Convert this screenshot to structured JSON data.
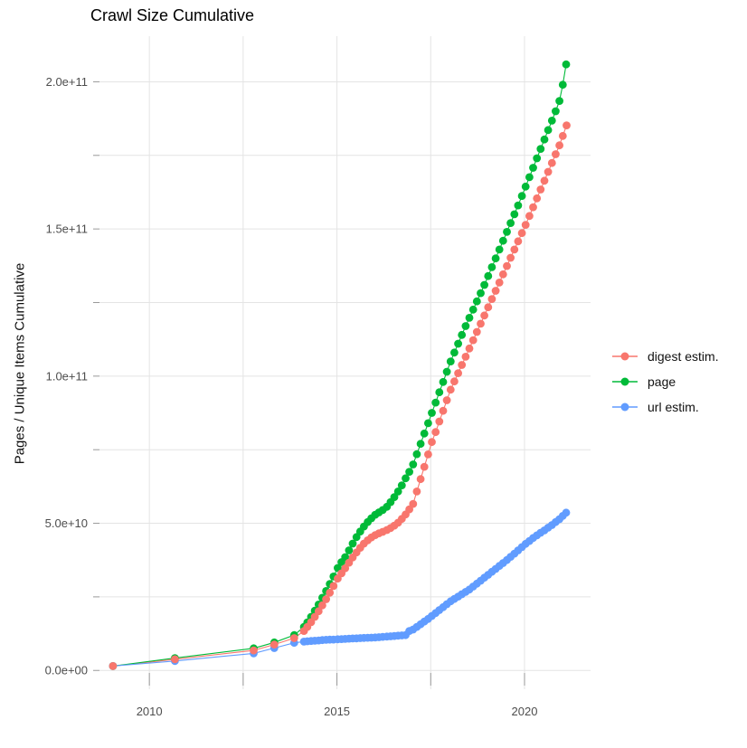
{
  "chart": {
    "title": "Crawl Size Cumulative",
    "y_axis_title": "Pages / Unique Items Cumulative",
    "colors": {
      "background": "#FFFFFF",
      "grid": "#E4E4E4",
      "tick": "#999999",
      "tick_label": "#4D4D4D",
      "title": "#000000",
      "digest": "#F8766D",
      "page": "#00BA38",
      "url": "#619CFF"
    }
  },
  "chart_data": {
    "type": "scatter",
    "title": "Crawl Size Cumulative",
    "xlabel": "",
    "ylabel": "Pages / Unique Items Cumulative",
    "legend_position": "right",
    "grid": "on",
    "value_unit_e9": 1000000000,
    "x_range": [
      2008.67,
      2021.76
    ],
    "y_range_e9": [
      -7.3,
      215.5
    ],
    "x_ticks": [
      {
        "year": 2010,
        "label": "2010"
      },
      {
        "year": 2012.5,
        "label": ""
      },
      {
        "year": 2015,
        "label": "2015"
      },
      {
        "year": 2017.5,
        "label": ""
      },
      {
        "year": 2020,
        "label": "2020"
      }
    ],
    "y_ticks": [
      {
        "value_e9": 0,
        "label": "0.0e+00"
      },
      {
        "value_e9": 25,
        "label": ""
      },
      {
        "value_e9": 50,
        "label": "5.0e+10"
      },
      {
        "value_e9": 75,
        "label": ""
      },
      {
        "value_e9": 100,
        "label": "1.0e+11"
      },
      {
        "value_e9": 125,
        "label": ""
      },
      {
        "value_e9": 150,
        "label": "1.5e+11"
      },
      {
        "value_e9": 175,
        "label": ""
      },
      {
        "value_e9": 200,
        "label": "2.0e+11"
      }
    ],
    "series": [
      {
        "name": "digest estim.",
        "color": "#F8766D",
        "points_year_value_e9": [
          [
            2009.03,
            1.5
          ],
          [
            2010.68,
            3.8
          ],
          [
            2012.78,
            6.8
          ],
          [
            2013.33,
            8.8
          ],
          [
            2013.86,
            11.0
          ],
          [
            2014.12,
            13.4
          ],
          [
            2014.21,
            14.8
          ],
          [
            2014.31,
            16.4
          ],
          [
            2014.41,
            18.2
          ],
          [
            2014.51,
            20.1
          ],
          [
            2014.61,
            22.1
          ],
          [
            2014.71,
            24.2
          ],
          [
            2014.81,
            26.4
          ],
          [
            2014.91,
            28.7
          ],
          [
            2015.02,
            31.2
          ],
          [
            2015.12,
            33.0
          ],
          [
            2015.22,
            34.7
          ],
          [
            2015.32,
            36.6
          ],
          [
            2015.42,
            38.4
          ],
          [
            2015.52,
            40.1
          ],
          [
            2015.62,
            41.7
          ],
          [
            2015.72,
            43.1
          ],
          [
            2015.82,
            44.2
          ],
          [
            2015.92,
            45.2
          ],
          [
            2016.02,
            46.0
          ],
          [
            2016.12,
            46.6
          ],
          [
            2016.22,
            47.1
          ],
          [
            2016.33,
            47.7
          ],
          [
            2016.43,
            48.4
          ],
          [
            2016.53,
            49.2
          ],
          [
            2016.63,
            50.2
          ],
          [
            2016.73,
            51.5
          ],
          [
            2016.83,
            53.0
          ],
          [
            2016.93,
            54.7
          ],
          [
            2017.03,
            56.6
          ],
          [
            2017.13,
            60.8
          ],
          [
            2017.23,
            65.0
          ],
          [
            2017.33,
            69.2
          ],
          [
            2017.43,
            73.4
          ],
          [
            2017.53,
            77.6
          ],
          [
            2017.63,
            81.0
          ],
          [
            2017.73,
            84.6
          ],
          [
            2017.83,
            88.2
          ],
          [
            2017.93,
            91.8
          ],
          [
            2018.03,
            95.4
          ],
          [
            2018.13,
            98.2
          ],
          [
            2018.23,
            101.0
          ],
          [
            2018.33,
            103.8
          ],
          [
            2018.43,
            106.6
          ],
          [
            2018.53,
            109.4
          ],
          [
            2018.63,
            112.2
          ],
          [
            2018.73,
            115.0
          ],
          [
            2018.83,
            117.8
          ],
          [
            2018.93,
            120.6
          ],
          [
            2019.03,
            123.4
          ],
          [
            2019.13,
            126.2
          ],
          [
            2019.23,
            129.0
          ],
          [
            2019.33,
            131.8
          ],
          [
            2019.43,
            134.6
          ],
          [
            2019.53,
            137.4
          ],
          [
            2019.63,
            140.2
          ],
          [
            2019.73,
            143.0
          ],
          [
            2019.83,
            145.8
          ],
          [
            2019.93,
            148.6
          ],
          [
            2020.03,
            151.4
          ],
          [
            2020.13,
            154.4
          ],
          [
            2020.23,
            157.4
          ],
          [
            2020.33,
            160.4
          ],
          [
            2020.43,
            163.4
          ],
          [
            2020.53,
            166.4
          ],
          [
            2020.63,
            169.4
          ],
          [
            2020.73,
            172.4
          ],
          [
            2020.83,
            175.4
          ],
          [
            2020.93,
            178.4
          ],
          [
            2021.02,
            181.6
          ],
          [
            2021.12,
            185.2
          ]
        ]
      },
      {
        "name": "page",
        "color": "#00BA38",
        "points_year_value_e9": [
          [
            2009.03,
            1.5
          ],
          [
            2010.68,
            4.2
          ],
          [
            2012.78,
            7.5
          ],
          [
            2013.33,
            9.5
          ],
          [
            2013.86,
            12.0
          ],
          [
            2014.12,
            14.8
          ],
          [
            2014.21,
            16.3
          ],
          [
            2014.31,
            18.2
          ],
          [
            2014.41,
            20.3
          ],
          [
            2014.51,
            22.4
          ],
          [
            2014.61,
            24.7
          ],
          [
            2014.71,
            27.0
          ],
          [
            2014.81,
            29.4
          ],
          [
            2014.91,
            31.9
          ],
          [
            2015.02,
            34.8
          ],
          [
            2015.12,
            36.8
          ],
          [
            2015.22,
            38.5
          ],
          [
            2015.32,
            40.8
          ],
          [
            2015.42,
            43.1
          ],
          [
            2015.52,
            45.3
          ],
          [
            2015.62,
            47.2
          ],
          [
            2015.72,
            48.9
          ],
          [
            2015.82,
            50.4
          ],
          [
            2015.92,
            51.7
          ],
          [
            2016.02,
            52.9
          ],
          [
            2016.12,
            53.7
          ],
          [
            2016.22,
            54.5
          ],
          [
            2016.33,
            55.6
          ],
          [
            2016.43,
            57.2
          ],
          [
            2016.53,
            58.9
          ],
          [
            2016.63,
            60.8
          ],
          [
            2016.73,
            62.9
          ],
          [
            2016.83,
            65.3
          ],
          [
            2016.93,
            67.5
          ],
          [
            2017.03,
            70.0
          ],
          [
            2017.13,
            73.5
          ],
          [
            2017.23,
            77.0
          ],
          [
            2017.33,
            80.5
          ],
          [
            2017.43,
            84.0
          ],
          [
            2017.53,
            87.5
          ],
          [
            2017.63,
            91.0
          ],
          [
            2017.73,
            94.5
          ],
          [
            2017.83,
            98.0
          ],
          [
            2017.93,
            101.5
          ],
          [
            2018.03,
            105.0
          ],
          [
            2018.13,
            108.0
          ],
          [
            2018.23,
            111.0
          ],
          [
            2018.33,
            114.0
          ],
          [
            2018.43,
            117.0
          ],
          [
            2018.53,
            119.8
          ],
          [
            2018.63,
            122.6
          ],
          [
            2018.73,
            125.4
          ],
          [
            2018.83,
            128.2
          ],
          [
            2018.93,
            131.0
          ],
          [
            2019.03,
            134.0
          ],
          [
            2019.13,
            137.0
          ],
          [
            2019.23,
            140.0
          ],
          [
            2019.33,
            143.0
          ],
          [
            2019.43,
            146.0
          ],
          [
            2019.53,
            149.0
          ],
          [
            2019.63,
            152.0
          ],
          [
            2019.73,
            155.0
          ],
          [
            2019.83,
            158.0
          ],
          [
            2019.93,
            161.2
          ],
          [
            2020.03,
            164.4
          ],
          [
            2020.13,
            167.6
          ],
          [
            2020.23,
            170.8
          ],
          [
            2020.33,
            174.0
          ],
          [
            2020.43,
            177.2
          ],
          [
            2020.53,
            180.4
          ],
          [
            2020.63,
            183.6
          ],
          [
            2020.73,
            186.8
          ],
          [
            2020.83,
            190.0
          ],
          [
            2020.93,
            193.5
          ],
          [
            2021.02,
            199.0
          ],
          [
            2021.11,
            205.9
          ]
        ]
      },
      {
        "name": "url estim.",
        "color": "#619CFF",
        "points_year_value_e9": [
          [
            2009.03,
            1.5
          ],
          [
            2010.68,
            3.2
          ],
          [
            2012.78,
            5.8
          ],
          [
            2013.33,
            7.6
          ],
          [
            2013.86,
            9.4
          ],
          [
            2014.12,
            9.8
          ],
          [
            2014.21,
            9.9
          ],
          [
            2014.31,
            10.0
          ],
          [
            2014.41,
            10.1
          ],
          [
            2014.51,
            10.2
          ],
          [
            2014.61,
            10.3
          ],
          [
            2014.71,
            10.4
          ],
          [
            2014.81,
            10.45
          ],
          [
            2014.91,
            10.5
          ],
          [
            2015.02,
            10.6
          ],
          [
            2015.12,
            10.65
          ],
          [
            2015.22,
            10.7
          ],
          [
            2015.32,
            10.8
          ],
          [
            2015.42,
            10.85
          ],
          [
            2015.52,
            10.9
          ],
          [
            2015.62,
            11.0
          ],
          [
            2015.72,
            11.05
          ],
          [
            2015.82,
            11.1
          ],
          [
            2015.92,
            11.15
          ],
          [
            2016.02,
            11.2
          ],
          [
            2016.12,
            11.3
          ],
          [
            2016.22,
            11.4
          ],
          [
            2016.33,
            11.5
          ],
          [
            2016.43,
            11.6
          ],
          [
            2016.53,
            11.7
          ],
          [
            2016.63,
            11.8
          ],
          [
            2016.73,
            11.9
          ],
          [
            2016.83,
            12.0
          ],
          [
            2016.93,
            13.4
          ],
          [
            2017.03,
            13.9
          ],
          [
            2017.13,
            14.8
          ],
          [
            2017.23,
            15.7
          ],
          [
            2017.33,
            16.6
          ],
          [
            2017.43,
            17.5
          ],
          [
            2017.53,
            18.5
          ],
          [
            2017.63,
            19.5
          ],
          [
            2017.73,
            20.5
          ],
          [
            2017.83,
            21.5
          ],
          [
            2017.93,
            22.5
          ],
          [
            2018.03,
            23.5
          ],
          [
            2018.13,
            24.3
          ],
          [
            2018.23,
            25.1
          ],
          [
            2018.33,
            25.9
          ],
          [
            2018.43,
            26.7
          ],
          [
            2018.53,
            27.5
          ],
          [
            2018.63,
            28.5
          ],
          [
            2018.73,
            29.5
          ],
          [
            2018.83,
            30.5
          ],
          [
            2018.93,
            31.5
          ],
          [
            2019.03,
            32.5
          ],
          [
            2019.13,
            33.5
          ],
          [
            2019.23,
            34.5
          ],
          [
            2019.33,
            35.5
          ],
          [
            2019.43,
            36.5
          ],
          [
            2019.53,
            37.5
          ],
          [
            2019.63,
            38.6
          ],
          [
            2019.73,
            39.7
          ],
          [
            2019.83,
            40.8
          ],
          [
            2019.93,
            41.9
          ],
          [
            2020.03,
            43.0
          ],
          [
            2020.13,
            44.0
          ],
          [
            2020.23,
            45.0
          ],
          [
            2020.33,
            45.9
          ],
          [
            2020.43,
            46.8
          ],
          [
            2020.53,
            47.6
          ],
          [
            2020.63,
            48.5
          ],
          [
            2020.73,
            49.4
          ],
          [
            2020.83,
            50.4
          ],
          [
            2020.93,
            51.4
          ],
          [
            2021.02,
            52.5
          ],
          [
            2021.11,
            53.6
          ]
        ]
      }
    ]
  }
}
